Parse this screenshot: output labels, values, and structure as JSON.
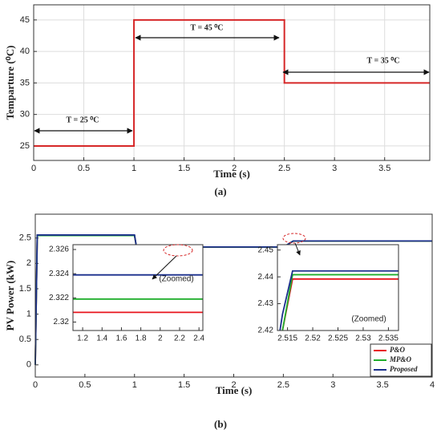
{
  "chart_data": [
    {
      "type": "line",
      "xlabel": "Time (s)",
      "ylabel": "Temparture (⁰C)",
      "caption": "(a)",
      "x": [
        0,
        1,
        1,
        2.5,
        2.5,
        3.95
      ],
      "values": [
        25,
        25,
        45,
        45,
        35,
        35
      ],
      "color": "#d62728",
      "xlim": [
        0,
        3.95
      ],
      "xticks": [
        0,
        0.5,
        1,
        1.5,
        2,
        2.5,
        3,
        3.5
      ],
      "ylim": [
        22.7,
        47.4
      ],
      "yticks": [
        25,
        30,
        35,
        40,
        45
      ],
      "grid": true,
      "annotations": [
        "T = 25 ⁰C",
        "T = 45 ⁰C",
        "T = 35 ⁰C"
      ]
    },
    {
      "type": "line",
      "xlabel": "Time (s)",
      "ylabel": "PV Power (kW)",
      "caption": "(b)",
      "x": [
        0,
        0.02,
        1.0,
        1.02,
        2.5,
        2.6,
        4.0
      ],
      "series": [
        {
          "name": "P&O",
          "color": "#e8141c",
          "values": [
            0,
            2.55,
            2.55,
            2.32,
            2.32,
            2.439,
            2.439
          ]
        },
        {
          "name": "MP&O",
          "color": "#1fae2c",
          "values": [
            0,
            2.55,
            2.55,
            2.322,
            2.322,
            2.441,
            2.441
          ]
        },
        {
          "name": "Proposed",
          "color": "#1a2f8c",
          "values": [
            0,
            2.56,
            2.56,
            2.324,
            2.324,
            2.442,
            2.442
          ]
        }
      ],
      "xlim": [
        0,
        4
      ],
      "xticks": [
        0,
        0.5,
        1,
        1.5,
        2,
        2.5,
        3,
        3.5,
        4
      ],
      "ylim": [
        -0.24,
        2.97
      ],
      "yticks": [
        0,
        0.5,
        1,
        1.5,
        2,
        2.5
      ],
      "grid": false,
      "legend": "lower right"
    },
    {
      "type": "line",
      "annotation": "(Zoomed)",
      "x": [
        1.1,
        2.44
      ],
      "series": [
        {
          "name": "P&O",
          "color": "#e8141c",
          "values": [
            2.3208,
            2.3208
          ]
        },
        {
          "name": "MP&O",
          "color": "#1fae2c",
          "values": [
            2.3219,
            2.3219
          ]
        },
        {
          "name": "Proposed",
          "color": "#1a2f8c",
          "values": [
            2.3239,
            2.3239
          ]
        }
      ],
      "xlim": [
        1.1,
        2.44
      ],
      "xticks": [
        1.2,
        1.4,
        1.6,
        1.8,
        2,
        2.2,
        2.4
      ],
      "ylim": [
        2.3193,
        2.3264
      ],
      "yticks": [
        2.32,
        2.322,
        2.324,
        2.326
      ],
      "grid": false
    },
    {
      "type": "line",
      "annotation": "(Zoomed)",
      "x": [
        2.5135,
        2.514,
        2.516,
        2.537
      ],
      "series": [
        {
          "name": "P&O",
          "color": "#e8141c",
          "values": [
            null,
            2.42,
            2.4392,
            2.4392
          ]
        },
        {
          "name": "MP&O",
          "color": "#1fae2c",
          "values": [
            null,
            2.42,
            2.4408,
            2.4408
          ]
        },
        {
          "name": "Proposed",
          "color": "#1a2f8c",
          "values": [
            2.42,
            2.426,
            2.4422,
            2.4422
          ]
        }
      ],
      "xlim": [
        2.513,
        2.537
      ],
      "xticks": [
        2.515,
        2.52,
        2.525,
        2.53,
        2.535
      ],
      "ylim": [
        2.42,
        2.452
      ],
      "yticks": [
        2.42,
        2.43,
        2.44,
        2.45
      ],
      "grid": false
    }
  ]
}
